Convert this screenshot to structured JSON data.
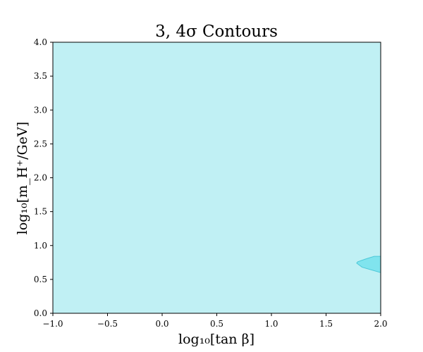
{
  "chart_data": {
    "type": "area",
    "title": "3, 4σ Contours",
    "xlabel": "log₁₀[tan β]",
    "ylabel": "log₁₀[m_H⁺/GeV]",
    "xlim": [
      -1.0,
      2.0
    ],
    "ylim": [
      0.0,
      4.0
    ],
    "x_ticks": [
      -1.0,
      -0.5,
      0.0,
      0.5,
      1.0,
      1.5,
      2.0
    ],
    "x_tick_labels": [
      "−1.0",
      "−0.5",
      "0.0",
      "0.5",
      "1.0",
      "1.5",
      "2.0"
    ],
    "y_ticks": [
      0.0,
      0.5,
      1.0,
      1.5,
      2.0,
      2.5,
      3.0,
      3.5,
      4.0
    ],
    "y_tick_labels": [
      "0.0",
      "0.5",
      "1.0",
      "1.5",
      "2.0",
      "2.5",
      "3.0",
      "3.5",
      "4.0"
    ],
    "grid": false,
    "legend": "none",
    "regions": [
      {
        "color": "#c0f0f4",
        "points": [
          [
            -1.0,
            0.0
          ],
          [
            2.0,
            0.0
          ],
          [
            2.0,
            4.0
          ],
          [
            -1.0,
            4.0
          ]
        ]
      },
      {
        "color": "#80e4ee",
        "edge_color": "#4cc8d8",
        "points": [
          [
            1.78,
            0.74
          ],
          [
            1.83,
            0.68
          ],
          [
            2.0,
            0.6
          ],
          [
            2.0,
            0.84
          ],
          [
            1.94,
            0.84
          ],
          [
            1.86,
            0.8
          ],
          [
            1.79,
            0.76
          ]
        ]
      }
    ]
  }
}
